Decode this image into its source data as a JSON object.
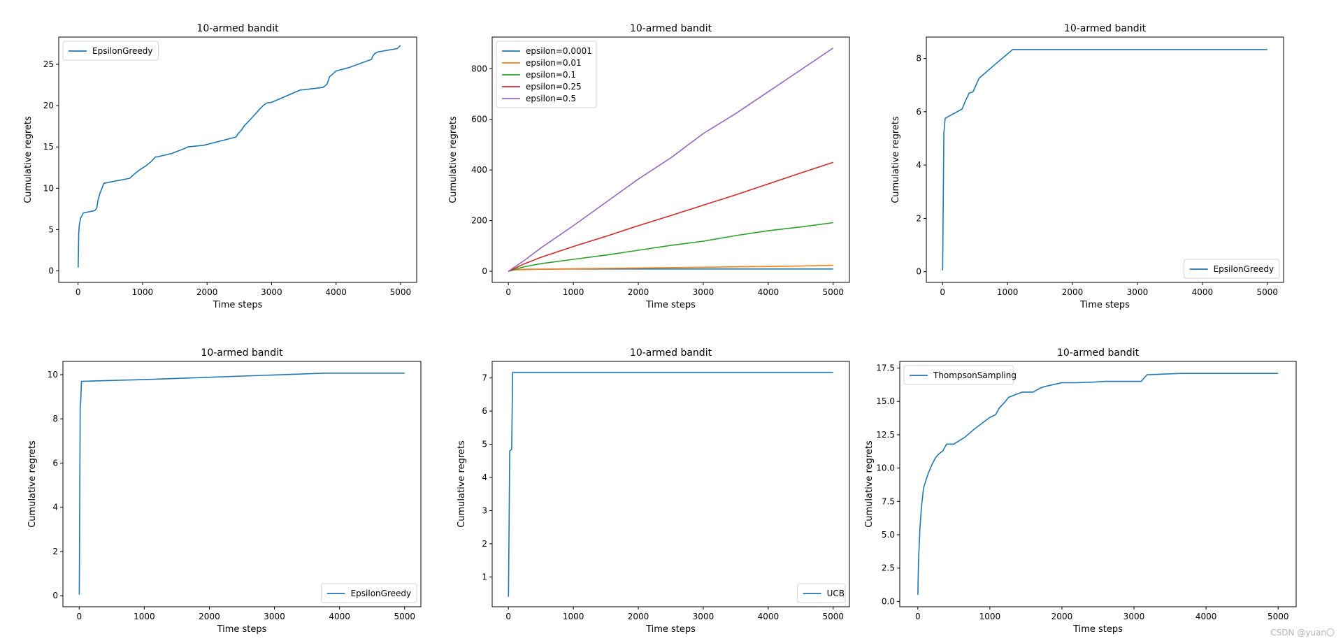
{
  "watermark": "CSDN @yuan〇",
  "chart_data": [
    {
      "type": "line",
      "title": "10-armed bandit",
      "xlabel": "Time steps",
      "ylabel": "Cumulative regrets",
      "xlim": [
        -300,
        5250
      ],
      "ylim": [
        -1.4,
        28.3
      ],
      "xticks": [
        0,
        1000,
        2000,
        3000,
        4000,
        5000
      ],
      "yticks": [
        0,
        5,
        10,
        15,
        20,
        25
      ],
      "legend": "top-left",
      "series": [
        {
          "name": "EpsilonGreedy",
          "color": "#1f77b4",
          "x": [
            1,
            10,
            20,
            40,
            70,
            80,
            260,
            290,
            310,
            340,
            370,
            400,
            800,
            870,
            950,
            1050,
            1130,
            1200,
            1230,
            1450,
            1650,
            1700,
            1950,
            2450,
            2480,
            2530,
            2580,
            2620,
            2680,
            2750,
            2820,
            2870,
            2920,
            3000,
            3450,
            3480,
            3800,
            3860,
            3900,
            4000,
            4200,
            4550,
            4570,
            4600,
            4650,
            4950,
            5000
          ],
          "y": [
            0.4,
            4.5,
            5.6,
            6.4,
            6.8,
            7.0,
            7.3,
            7.6,
            8.6,
            9.4,
            10.0,
            10.6,
            11.2,
            11.7,
            12.2,
            12.7,
            13.2,
            13.8,
            13.8,
            14.2,
            14.8,
            15.0,
            15.2,
            16.2,
            16.6,
            17.0,
            17.6,
            17.9,
            18.4,
            19.0,
            19.6,
            20.0,
            20.3,
            20.4,
            21.9,
            21.9,
            22.2,
            22.6,
            23.5,
            24.2,
            24.6,
            25.6,
            26.0,
            26.3,
            26.5,
            26.9,
            27.3
          ]
        }
      ]
    },
    {
      "type": "line",
      "title": "10-armed bandit",
      "xlabel": "Time steps",
      "ylabel": "Cumulative regrets",
      "xlim": [
        -250,
        5250
      ],
      "ylim": [
        -44,
        925
      ],
      "xticks": [
        0,
        1000,
        2000,
        3000,
        4000,
        5000
      ],
      "yticks": [
        0,
        200,
        400,
        600,
        800
      ],
      "legend": "top-left",
      "series": [
        {
          "name": "epsilon=0.0001",
          "color": "#1f77b4",
          "x": [
            0,
            30,
            100,
            300,
            1000,
            2000,
            3000,
            4000,
            5000
          ],
          "y": [
            0,
            3,
            6,
            8,
            9,
            9,
            9,
            9,
            9
          ]
        },
        {
          "name": "epsilon=0.01",
          "color": "#ff7f0e",
          "x": [
            0,
            100,
            500,
            1000,
            2000,
            3000,
            4000,
            4500,
            5000
          ],
          "y": [
            0,
            6,
            8,
            10,
            13,
            16,
            19,
            21,
            24
          ]
        },
        {
          "name": "epsilon=0.1",
          "color": "#2ca02c",
          "x": [
            0,
            250,
            500,
            1000,
            1500,
            2000,
            2500,
            3000,
            3500,
            4000,
            4500,
            5000
          ],
          "y": [
            0,
            18,
            30,
            47,
            64,
            83,
            102,
            119,
            141,
            160,
            175,
            192
          ]
        },
        {
          "name": "epsilon=0.25",
          "color": "#d62728",
          "x": [
            0,
            250,
            500,
            1000,
            1500,
            2000,
            2500,
            3000,
            3500,
            4000,
            4500,
            5000
          ],
          "y": [
            0,
            30,
            55,
            98,
            138,
            180,
            220,
            261,
            302,
            345,
            388,
            430
          ]
        },
        {
          "name": "epsilon=0.5",
          "color": "#9467bd",
          "x": [
            0,
            250,
            500,
            1000,
            1500,
            2000,
            2500,
            3000,
            3500,
            4000,
            4500,
            5000
          ],
          "y": [
            0,
            44,
            92,
            180,
            272,
            364,
            448,
            544,
            623,
            709,
            795,
            882
          ]
        }
      ]
    },
    {
      "type": "line",
      "title": "10-armed bandit",
      "xlabel": "Time steps",
      "ylabel": "Cumulative regrets",
      "xlim": [
        -250,
        5250
      ],
      "ylim": [
        -0.4,
        8.8
      ],
      "xticks": [
        0,
        1000,
        2000,
        3000,
        4000,
        5000
      ],
      "yticks": [
        0,
        2,
        4,
        6,
        8
      ],
      "legend": "bottom-right",
      "series": [
        {
          "name": "EpsilonGreedy",
          "color": "#1f77b4",
          "x": [
            1,
            20,
            40,
            60,
            300,
            360,
            410,
            470,
            560,
            820,
            1080,
            5000
          ],
          "y": [
            0.05,
            5.2,
            5.75,
            5.78,
            6.1,
            6.45,
            6.7,
            6.75,
            7.25,
            7.8,
            8.33,
            8.33
          ]
        }
      ]
    },
    {
      "type": "line",
      "title": "10-armed bandit",
      "xlabel": "Time steps",
      "ylabel": "Cumulative regrets",
      "xlim": [
        -250,
        5250
      ],
      "ylim": [
        -0.5,
        10.6
      ],
      "xticks": [
        0,
        1000,
        2000,
        3000,
        4000,
        5000
      ],
      "yticks": [
        0,
        2,
        4,
        6,
        8,
        10
      ],
      "legend": "bottom-right",
      "series": [
        {
          "name": "EpsilonGreedy",
          "color": "#1f77b4",
          "x": [
            1,
            15,
            25,
            35,
            1030,
            3780,
            5000
          ],
          "y": [
            0.05,
            8.5,
            8.9,
            9.7,
            9.78,
            10.07,
            10.07
          ]
        }
      ]
    },
    {
      "type": "line",
      "title": "10-armed bandit",
      "xlabel": "Time steps",
      "ylabel": "Cumulative regrets",
      "xlim": [
        -250,
        5250
      ],
      "ylim": [
        0.1,
        7.5
      ],
      "xticks": [
        0,
        1000,
        2000,
        3000,
        4000,
        5000
      ],
      "yticks": [
        1,
        2,
        3,
        4,
        5,
        6,
        7
      ],
      "legend": "bottom-right",
      "series": [
        {
          "name": "UCB",
          "color": "#1f77b4",
          "x": [
            1,
            20,
            50,
            65,
            5000
          ],
          "y": [
            0.4,
            4.8,
            4.85,
            7.17,
            7.17
          ]
        }
      ]
    },
    {
      "type": "line",
      "title": "10-armed bandit",
      "xlabel": "Time steps",
      "ylabel": "Cumulative regrets",
      "xlim": [
        -250,
        5250
      ],
      "ylim": [
        -0.4,
        18.0
      ],
      "xticks": [
        0,
        1000,
        2000,
        3000,
        4000,
        5000
      ],
      "yticks": [
        0.0,
        2.5,
        5.0,
        7.5,
        10.0,
        12.5,
        15.0,
        17.5
      ],
      "yticklabels": [
        "0.0",
        "2.5",
        "5.0",
        "7.5",
        "10.0",
        "12.5",
        "15.0",
        "17.5"
      ],
      "legend": "top-left",
      "series": [
        {
          "name": "ThompsonSampling",
          "color": "#1f77b4",
          "x": [
            1,
            10,
            30,
            50,
            80,
            120,
            160,
            200,
            250,
            300,
            350,
            400,
            500,
            650,
            780,
            900,
            1000,
            1080,
            1130,
            1200,
            1260,
            1350,
            1450,
            1600,
            1700,
            1750,
            2000,
            2200,
            2450,
            2600,
            3100,
            3180,
            3650,
            5000
          ],
          "y": [
            0.5,
            3.0,
            5.5,
            7.0,
            8.5,
            9.2,
            9.8,
            10.3,
            10.8,
            11.1,
            11.3,
            11.8,
            11.8,
            12.3,
            12.9,
            13.4,
            13.8,
            14.0,
            14.5,
            14.9,
            15.3,
            15.5,
            15.7,
            15.7,
            16.0,
            16.1,
            16.4,
            16.4,
            16.45,
            16.5,
            16.5,
            17.0,
            17.1,
            17.1
          ]
        }
      ]
    }
  ]
}
